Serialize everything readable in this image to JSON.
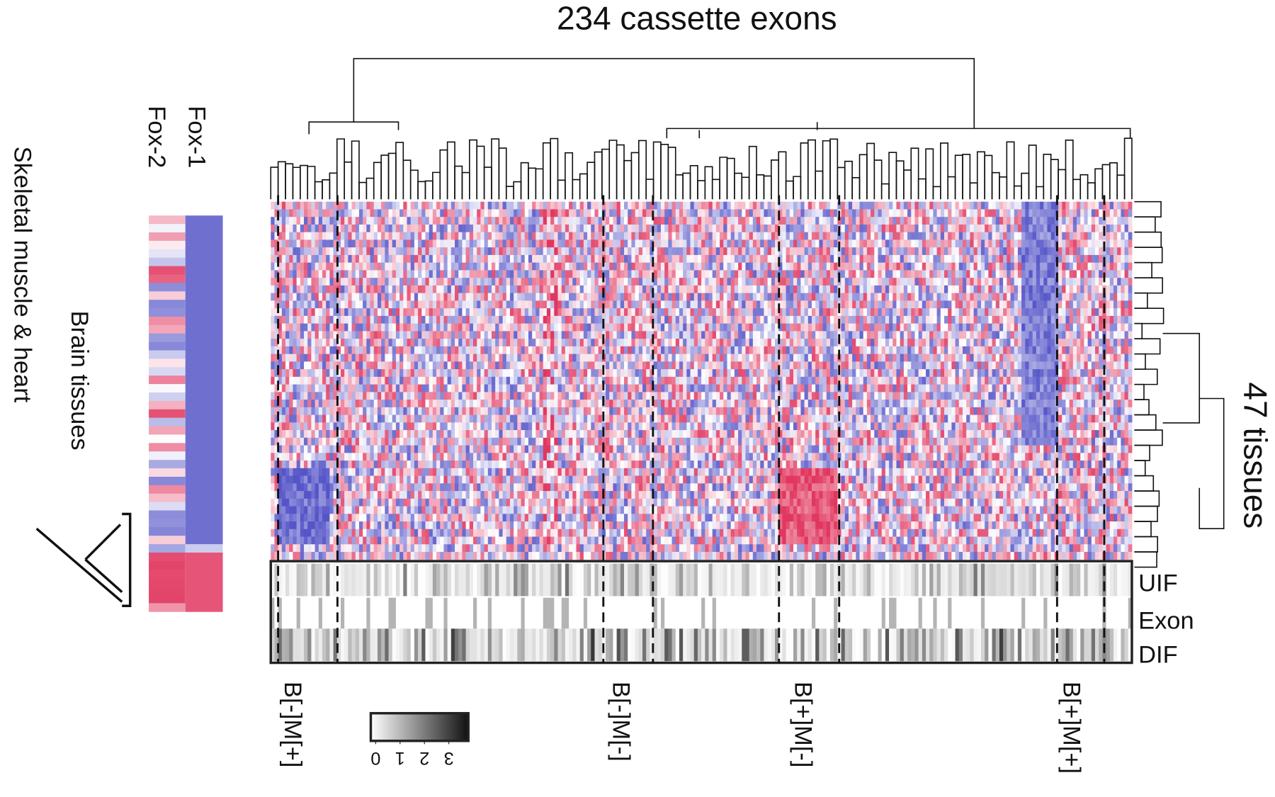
{
  "title": "234 cassette exons",
  "tissue_label": "47 tissues",
  "side_labels": {
    "fox1": "Fox-1",
    "fox2": "Fox-2",
    "brain": "Brain tissues",
    "muscle": "Skeletal muscle & heart"
  },
  "tracks": [
    "UIF",
    "Exon",
    "DIF"
  ],
  "clusters": [
    "B[-]M[+]",
    "B[-]M[-]",
    "B[+]M[-]",
    "B[+]M[+]"
  ],
  "colorbar": {
    "ticks": [
      0,
      1,
      2,
      3
    ]
  }
}
